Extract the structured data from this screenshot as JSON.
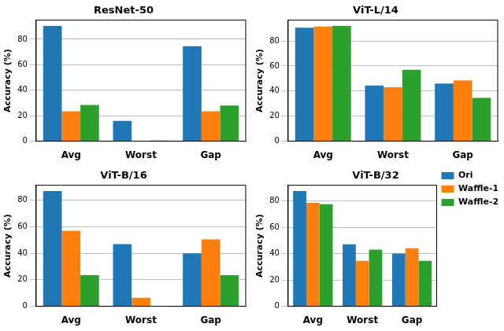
{
  "chart_data": [
    {
      "type": "bar",
      "title": "ResNet-50",
      "y_label": "Accuracy (%)",
      "categories": [
        "Avg",
        "Worst",
        "Gap"
      ],
      "series": [
        {
          "name": "Ori",
          "color": "#1f77b4",
          "values": [
            90.5,
            16,
            74.5
          ]
        },
        {
          "name": "Waffle-1",
          "color": "#ff7f0e",
          "values": [
            23.5,
            0.2,
            23.5
          ]
        },
        {
          "name": "Waffle-2",
          "color": "#2ca02c",
          "values": [
            28.5,
            0.5,
            28
          ]
        }
      ],
      "ylim": [
        0,
        95
      ],
      "yticks": [
        0,
        20,
        40,
        60,
        80
      ],
      "grid": true
    },
    {
      "type": "bar",
      "title": "ViT-L/14",
      "y_label": "Accuracy (%)",
      "categories": [
        "Avg",
        "Worst",
        "Gap"
      ],
      "series": [
        {
          "name": "Ori",
          "color": "#1f77b4",
          "values": [
            90.5,
            44.5,
            46
          ]
        },
        {
          "name": "Waffle-1",
          "color": "#ff7f0e",
          "values": [
            91.5,
            43,
            48.5
          ]
        },
        {
          "name": "Waffle-2",
          "color": "#2ca02c",
          "values": [
            92,
            57,
            34.5
          ]
        }
      ],
      "ylim": [
        0,
        96.6
      ],
      "yticks": [
        0,
        20,
        40,
        60,
        80
      ],
      "grid": true
    },
    {
      "type": "bar",
      "title": "ViT-B/16",
      "y_label": "Accuracy (%)",
      "categories": [
        "Avg",
        "Worst",
        "Gap"
      ],
      "series": [
        {
          "name": "Ori",
          "color": "#1f77b4",
          "values": [
            87,
            47,
            40
          ]
        },
        {
          "name": "Waffle-1",
          "color": "#ff7f0e",
          "values": [
            57,
            6.5,
            50.5
          ]
        },
        {
          "name": "Waffle-2",
          "color": "#2ca02c",
          "values": [
            23.5,
            0.1,
            23.5
          ]
        }
      ],
      "ylim": [
        0,
        91.4
      ],
      "yticks": [
        0,
        20,
        40,
        60,
        80
      ],
      "grid": true
    },
    {
      "type": "bar",
      "title": "ViT-B/32",
      "y_label": "Accuracy (%)",
      "categories": [
        "Avg",
        "Worst",
        "Gap"
      ],
      "series": [
        {
          "name": "Ori",
          "color": "#1f77b4",
          "values": [
            87.5,
            47,
            40
          ]
        },
        {
          "name": "Waffle-1",
          "color": "#ff7f0e",
          "values": [
            78.5,
            34.5,
            44
          ]
        },
        {
          "name": "Waffle-2",
          "color": "#2ca02c",
          "values": [
            77.5,
            43,
            34.5
          ]
        }
      ],
      "ylim": [
        0,
        91.9
      ],
      "yticks": [
        0,
        20,
        40,
        60,
        80
      ],
      "grid": true,
      "legend": "upper right"
    }
  ]
}
